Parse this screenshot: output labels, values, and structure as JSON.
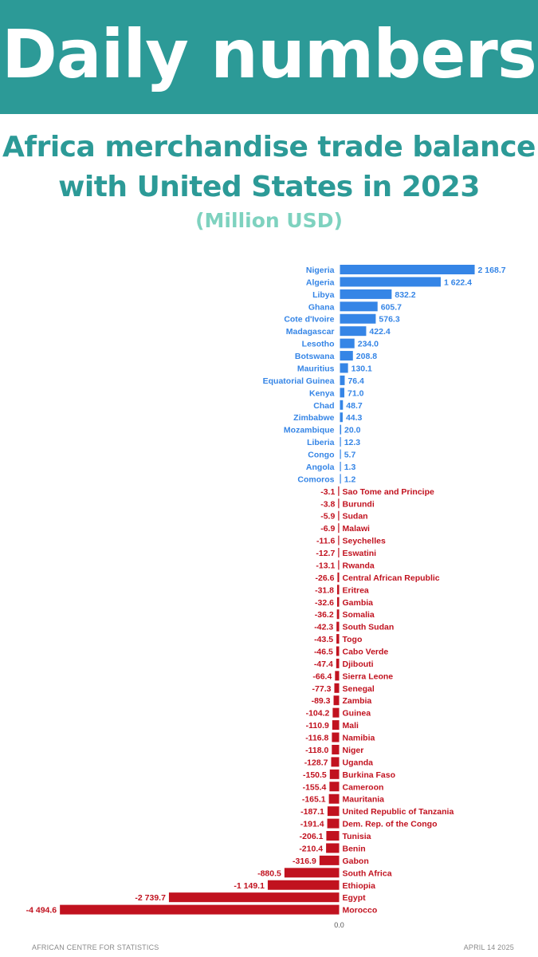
{
  "header": {
    "title": "Daily numbers"
  },
  "chart_title": {
    "line1": "Africa merchandise trade balance",
    "line2": "with United States in 2023",
    "unit": "(Million USD)"
  },
  "colors": {
    "banner": "#2c9a97",
    "positive": "#3585e6",
    "negative": "#c1121f",
    "subtitle": "#7ed2bf"
  },
  "footer": {
    "source": "AFRICAN CENTRE FOR STATISTICS",
    "date": "APRIL 14 2025"
  },
  "chart_data": {
    "type": "bar",
    "orientation": "horizontal",
    "title": "Africa merchandise trade balance with United States in 2023",
    "subtitle": "(Million USD)",
    "zero_label": "0.0",
    "categories": [
      "Nigeria",
      "Algeria",
      "Libya",
      "Ghana",
      "Cote d'Ivoire",
      "Madagascar",
      "Lesotho",
      "Botswana",
      "Mauritius",
      "Equatorial Guinea",
      "Kenya",
      "Chad",
      "Zimbabwe",
      "Mozambique",
      "Liberia",
      "Congo",
      "Angola",
      "Comoros",
      "Sao Tome and Principe",
      "Burundi",
      "Sudan",
      "Malawi",
      "Seychelles",
      "Eswatini",
      "Rwanda",
      "Central African Republic",
      "Eritrea",
      "Gambia",
      "Somalia",
      "South Sudan",
      "Togo",
      "Cabo Verde",
      "Djibouti",
      "Sierra Leone",
      "Senegal",
      "Zambia",
      "Guinea",
      "Mali",
      "Namibia",
      "Niger",
      "Uganda",
      "Burkina Faso",
      "Cameroon",
      "Mauritania",
      "United Republic of Tanzania",
      "Dem. Rep. of the Congo",
      "Tunisia",
      "Benin",
      "Gabon",
      "South Africa",
      "Ethiopia",
      "Egypt",
      "Morocco"
    ],
    "values": [
      2168.7,
      1622.4,
      832.2,
      605.7,
      576.3,
      422.4,
      234.0,
      208.8,
      130.1,
      76.4,
      71.0,
      48.7,
      44.3,
      20.0,
      12.3,
      5.7,
      1.3,
      1.2,
      -3.1,
      -3.8,
      -5.9,
      -6.9,
      -11.6,
      -12.7,
      -13.1,
      -26.6,
      -31.8,
      -32.6,
      -36.2,
      -42.3,
      -43.5,
      -46.5,
      -47.4,
      -66.4,
      -77.3,
      -89.3,
      -104.2,
      -110.9,
      -116.8,
      -118.0,
      -128.7,
      -150.5,
      -155.4,
      -165.1,
      -187.1,
      -191.4,
      -206.1,
      -210.4,
      -316.9,
      -880.5,
      -1149.1,
      -2739.7,
      -4494.6
    ],
    "value_labels": [
      "2 168.7",
      "1 622.4",
      "832.2",
      "605.7",
      "576.3",
      "422.4",
      "234.0",
      "208.8",
      "130.1",
      "76.4",
      "71.0",
      "48.7",
      "44.3",
      "20.0",
      "12.3",
      "5.7",
      "1.3",
      "1.2",
      "-3.1",
      "-3.8",
      "-5.9",
      "-6.9",
      "-11.6",
      "-12.7",
      "-13.1",
      "-26.6",
      "-31.8",
      "-32.6",
      "-36.2",
      "-42.3",
      "-43.5",
      "-46.5",
      "-47.4",
      "-66.4",
      "-77.3",
      "-89.3",
      "-104.2",
      "-110.9",
      "-116.8",
      "-118.0",
      "-128.7",
      "-150.5",
      "-155.4",
      "-165.1",
      "-187.1",
      "-191.4",
      "-206.1",
      "-210.4",
      "-316.9",
      "-880.5",
      "-1 149.1",
      "-2 739.7",
      "-4 494.6"
    ],
    "xlim": [
      -4494.6,
      2168.7
    ],
    "grid": false,
    "legend": "none"
  }
}
